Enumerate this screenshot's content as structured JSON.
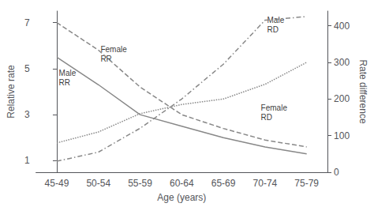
{
  "chart_data": {
    "type": "line",
    "xlabel": "Age (years)",
    "ylabel": "Relative rate",
    "y2label": "Rate difference",
    "categories": [
      "45-49",
      "50-54",
      "55-59",
      "60-64",
      "65-69",
      "70-74",
      "75-79"
    ],
    "series": [
      {
        "values": [
          7.0,
          5.8,
          4.2,
          3.0,
          2.4,
          1.9,
          1.6
        ],
        "color": "#888888",
        "line_style": "dashed"
      },
      {
        "values": [
          5.5,
          4.3,
          3.0,
          2.5,
          2.0,
          1.6,
          1.3
        ],
        "color": "#888888",
        "line_style": "solid"
      },
      {
        "values": [
          30,
          55,
          120,
          200,
          295,
          415,
          425
        ],
        "color": "#888888",
        "line_style": "dashdot",
        "axis": "y2"
      },
      {
        "values": [
          80,
          110,
          160,
          185,
          200,
          240,
          300
        ],
        "color": "#888888",
        "line_style": "dotted",
        "axis": "y2"
      }
    ],
    "ylim": [
      0.5,
      7.5
    ],
    "yticks": [
      1,
      3,
      5,
      7
    ],
    "y2lim": [
      0,
      440
    ],
    "y2ticks": [
      0,
      100,
      200,
      300,
      400
    ],
    "grid": false,
    "annotations": [
      {
        "text": "Female\nRR",
        "x": 1.05,
        "y": 6.05
      },
      {
        "text": "Male\nRR",
        "x": 0.05,
        "y": 5.0
      },
      {
        "text": "Male\nRD",
        "x": 5.05,
        "y": 7.3
      },
      {
        "text": "Female\nRD",
        "x": 4.9,
        "y": 3.5
      }
    ]
  }
}
